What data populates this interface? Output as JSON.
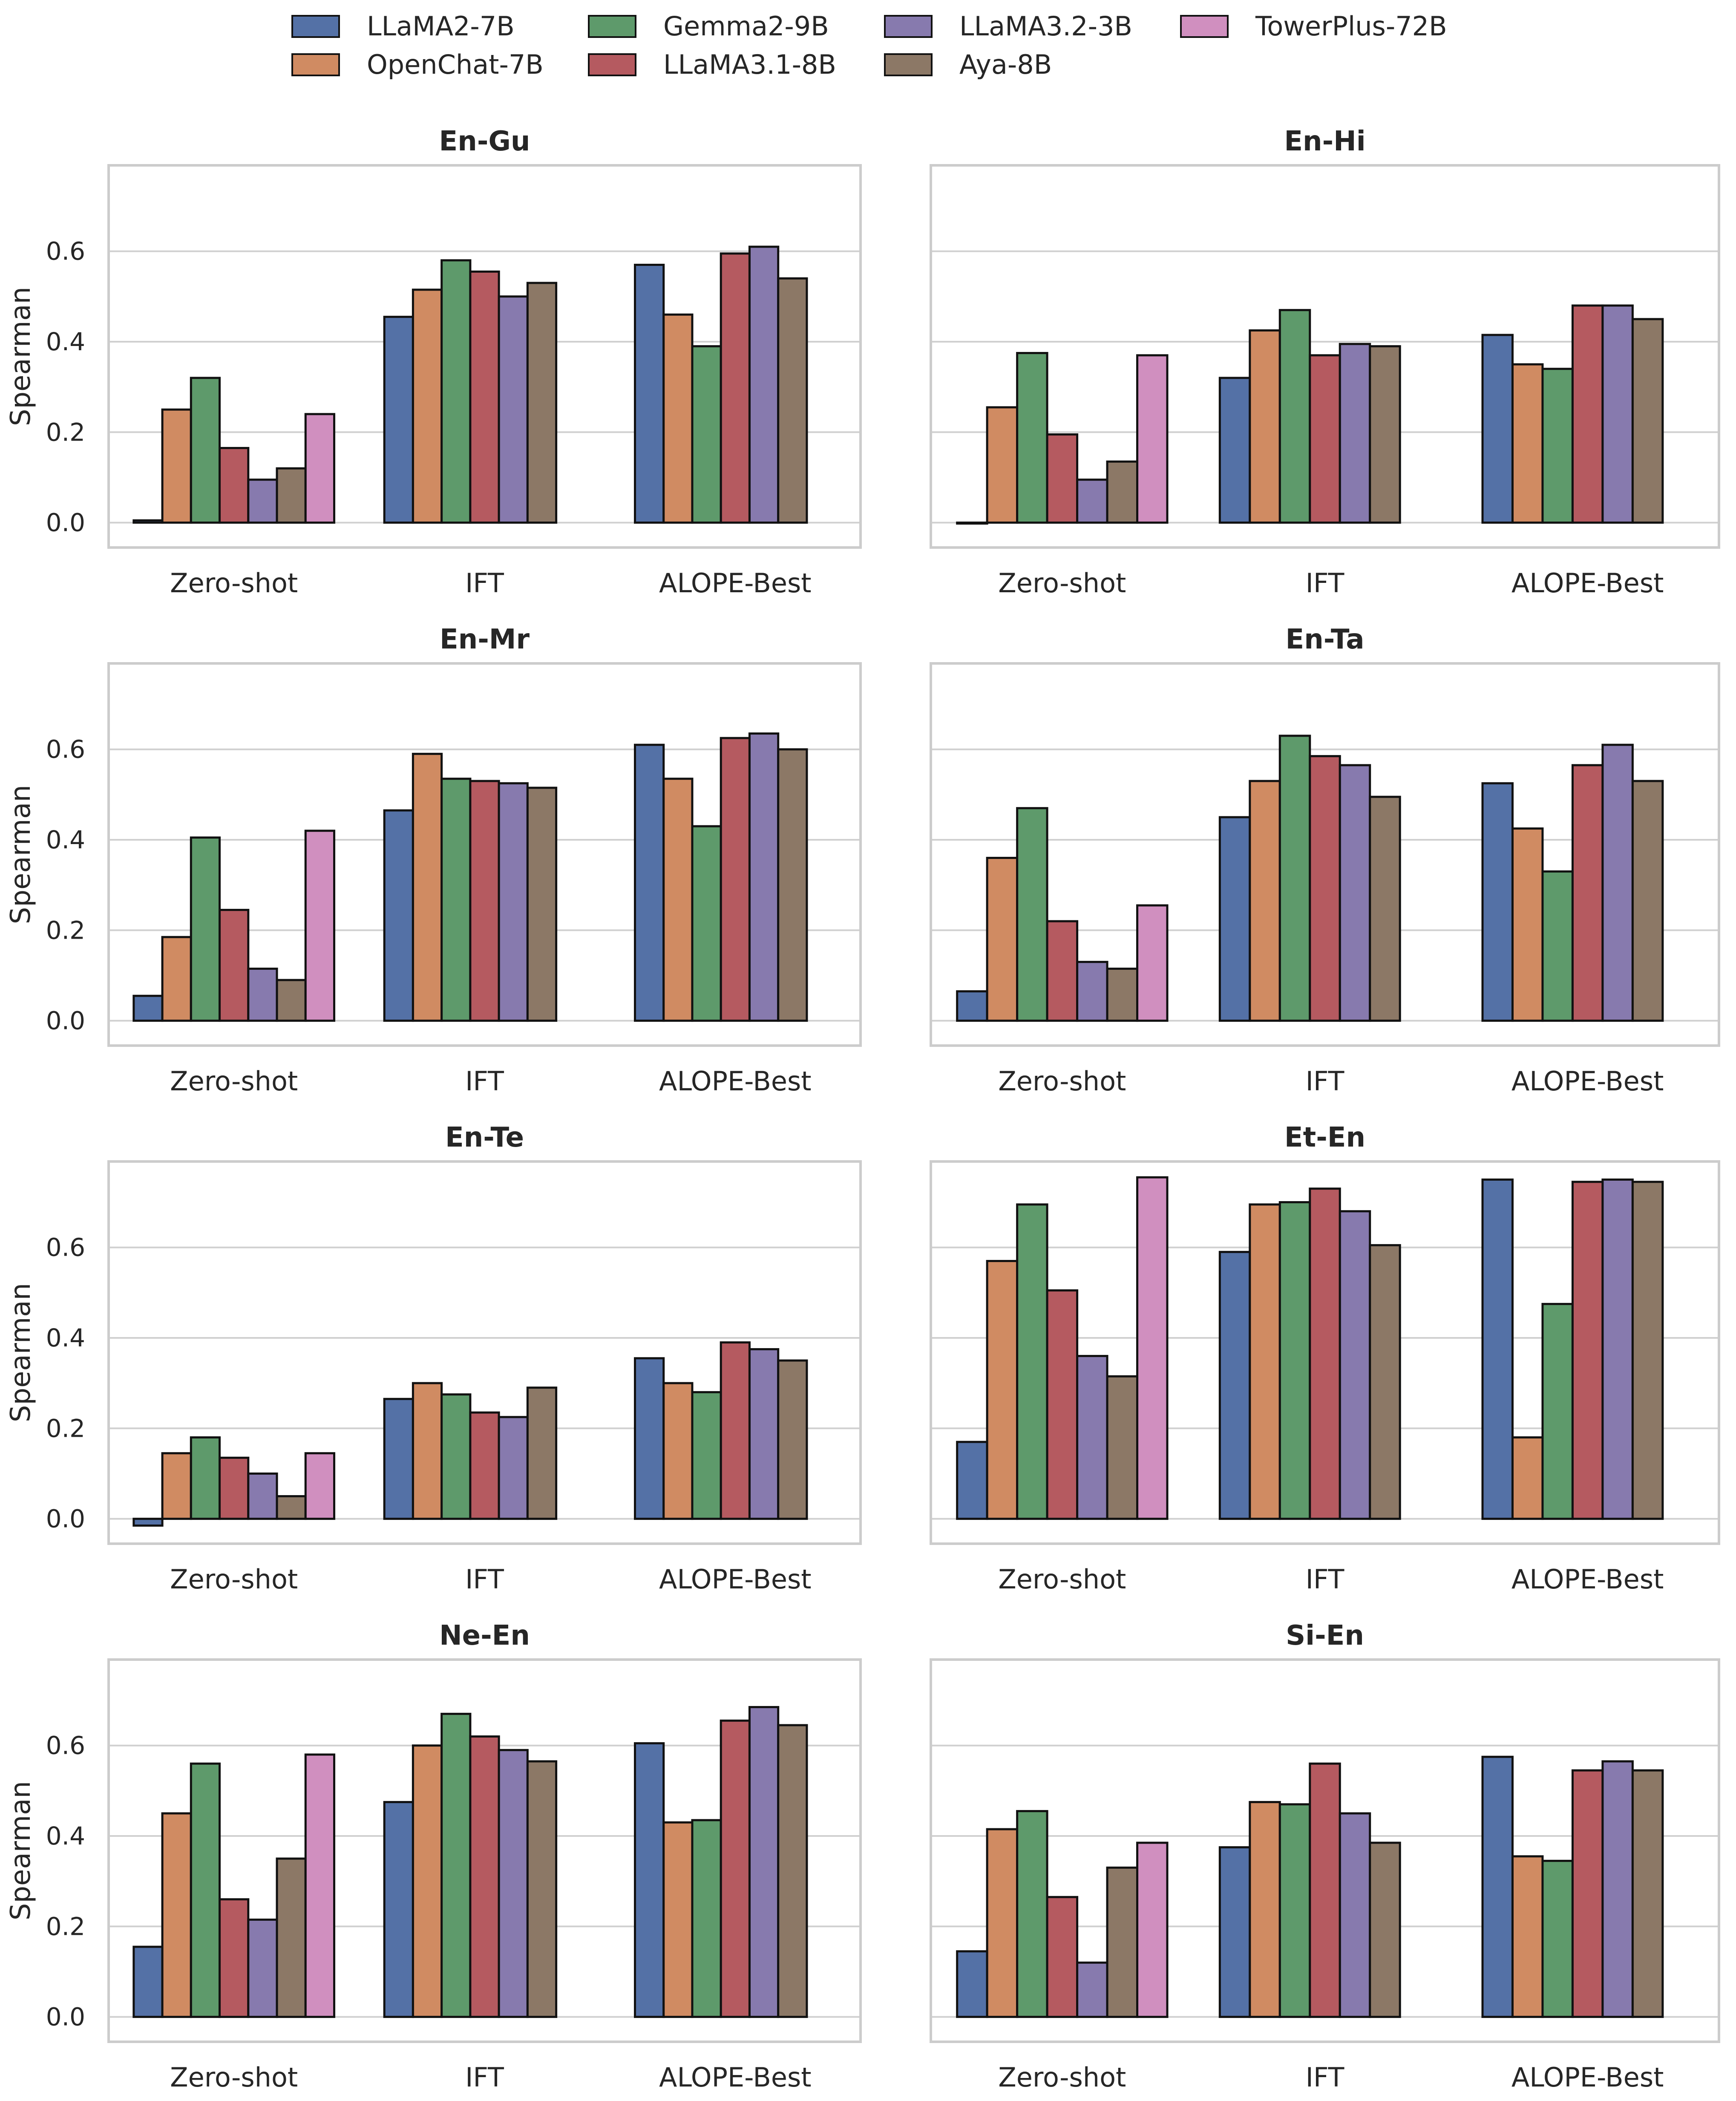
{
  "chart_data": {
    "type": "bar",
    "layout": "grid 4x2",
    "categories": [
      "Zero-shot",
      "IFT",
      "ALOPE-Best"
    ],
    "ylabel": "Spearman",
    "ylim": [
      -0.055,
      0.79
    ],
    "yticks": [
      0.0,
      0.2,
      0.4,
      0.6
    ],
    "ytick_labels": [
      "0.0",
      "0.2",
      "0.4",
      "0.6"
    ],
    "grid": "horizontal",
    "legend_position": "top-center",
    "series": [
      {
        "name": "LLaMA2-7B",
        "color": "#5471a6"
      },
      {
        "name": "OpenChat-7B",
        "color": "#d08b62"
      },
      {
        "name": "Gemma2-9B",
        "color": "#5e9a6b"
      },
      {
        "name": "LLaMA3.1-8B",
        "color": "#b55a60"
      },
      {
        "name": "LLaMA3.2-3B",
        "color": "#877aae"
      },
      {
        "name": "Aya-8B",
        "color": "#8c7866"
      },
      {
        "name": "TowerPlus-72B",
        "color": "#d08fbf"
      }
    ],
    "panels": [
      {
        "title": "En-Gu",
        "values": [
          [
            0.005,
            0.25,
            0.32,
            0.165,
            0.095,
            0.12,
            0.24
          ],
          [
            0.455,
            0.515,
            0.58,
            0.555,
            0.5,
            0.53,
            null
          ],
          [
            0.57,
            0.46,
            0.39,
            0.595,
            0.61,
            0.54,
            null
          ]
        ]
      },
      {
        "title": "En-Hi",
        "values": [
          [
            -0.002,
            0.255,
            0.375,
            0.195,
            0.095,
            0.135,
            0.37
          ],
          [
            0.32,
            0.425,
            0.47,
            0.37,
            0.395,
            0.39,
            null
          ],
          [
            0.415,
            0.35,
            0.34,
            0.48,
            0.48,
            0.45,
            null
          ]
        ]
      },
      {
        "title": "En-Mr",
        "values": [
          [
            0.055,
            0.185,
            0.405,
            0.245,
            0.115,
            0.09,
            0.42
          ],
          [
            0.465,
            0.59,
            0.535,
            0.53,
            0.525,
            0.515,
            null
          ],
          [
            0.61,
            0.535,
            0.43,
            0.625,
            0.635,
            0.6,
            null
          ]
        ]
      },
      {
        "title": "En-Ta",
        "values": [
          [
            0.065,
            0.36,
            0.47,
            0.22,
            0.13,
            0.115,
            0.255
          ],
          [
            0.45,
            0.53,
            0.63,
            0.585,
            0.565,
            0.495,
            null
          ],
          [
            0.525,
            0.425,
            0.33,
            0.565,
            0.61,
            0.53,
            null
          ]
        ]
      },
      {
        "title": "En-Te",
        "values": [
          [
            -0.015,
            0.145,
            0.18,
            0.135,
            0.1,
            0.05,
            0.145
          ],
          [
            0.265,
            0.3,
            0.275,
            0.235,
            0.225,
            0.29,
            null
          ],
          [
            0.355,
            0.3,
            0.28,
            0.39,
            0.375,
            0.35,
            null
          ]
        ]
      },
      {
        "title": "Et-En",
        "values": [
          [
            0.17,
            0.57,
            0.695,
            0.505,
            0.36,
            0.315,
            0.755
          ],
          [
            0.59,
            0.695,
            0.7,
            0.73,
            0.68,
            0.605,
            null
          ],
          [
            0.75,
            0.18,
            0.475,
            0.745,
            0.75,
            0.745,
            null
          ]
        ]
      },
      {
        "title": "Ne-En",
        "values": [
          [
            0.155,
            0.45,
            0.56,
            0.26,
            0.215,
            0.35,
            0.58
          ],
          [
            0.475,
            0.6,
            0.67,
            0.62,
            0.59,
            0.565,
            null
          ],
          [
            0.605,
            0.43,
            0.435,
            0.655,
            0.685,
            0.645,
            null
          ]
        ]
      },
      {
        "title": "Si-En",
        "values": [
          [
            0.145,
            0.415,
            0.455,
            0.265,
            0.12,
            0.33,
            0.385
          ],
          [
            0.375,
            0.475,
            0.47,
            0.56,
            0.45,
            0.385,
            null
          ],
          [
            0.575,
            0.355,
            0.345,
            0.545,
            0.565,
            0.545,
            null
          ]
        ]
      }
    ]
  }
}
